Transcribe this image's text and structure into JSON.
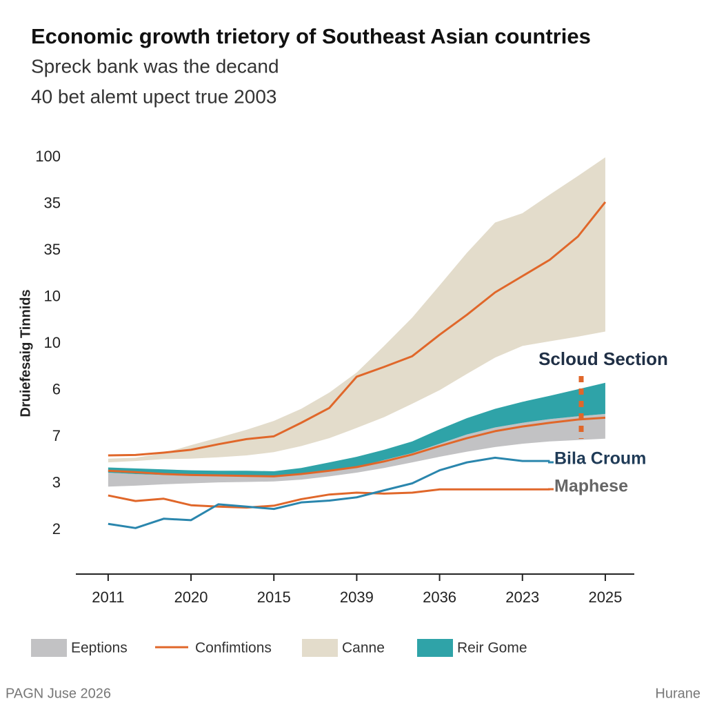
{
  "chart_data": {
    "type": "line",
    "title": "Economic growth trietory of Southeast Asian countries",
    "subtitle": [
      "Spreck bank was the decand",
      "40 bet alemt upect true 2003"
    ],
    "y_label": "Druiefesaig Tinnids",
    "x": [
      0,
      0.33,
      0.67,
      1,
      1.33,
      1.67,
      2,
      2.33,
      2.67,
      3,
      3.33,
      3.67,
      4,
      4.33,
      4.67,
      5,
      5.33,
      5.67,
      6
    ],
    "xlim": [
      -0.39,
      6.35
    ],
    "xticks": [
      {
        "value": 0,
        "label": "2011"
      },
      {
        "value": 1,
        "label": "2020"
      },
      {
        "value": 2,
        "label": "2015"
      },
      {
        "value": 3,
        "label": "2039"
      },
      {
        "value": 4,
        "label": "2036"
      },
      {
        "value": 5,
        "label": "2023"
      },
      {
        "value": 6,
        "label": "2025"
      }
    ],
    "ylim": [
      0,
      9
    ],
    "yticks": [
      {
        "value": 1,
        "label": "2"
      },
      {
        "value": 2,
        "label": "3"
      },
      {
        "value": 3,
        "label": "7"
      },
      {
        "value": 4,
        "label": "6"
      },
      {
        "value": 5,
        "label": "10"
      },
      {
        "value": 6,
        "label": "10"
      },
      {
        "value": 7,
        "label": "35"
      },
      {
        "value": 8,
        "label": "35"
      },
      {
        "value": 9,
        "label": "100"
      }
    ],
    "bands": [
      {
        "name": "Canne",
        "color": "#e3dccb",
        "upper": [
          2.53,
          2.55,
          2.65,
          2.82,
          2.98,
          3.15,
          3.34,
          3.6,
          3.95,
          4.38,
          4.95,
          5.56,
          6.25,
          6.95,
          7.6,
          7.8,
          8.2,
          8.6,
          9.0
        ],
        "lower": [
          2.45,
          2.48,
          2.52,
          2.53,
          2.56,
          2.6,
          2.67,
          2.8,
          2.97,
          3.19,
          3.42,
          3.71,
          4.0,
          4.35,
          4.7,
          4.95,
          5.05,
          5.15,
          5.26
        ]
      },
      {
        "name": "Eeptions",
        "color": "#c2c2c4",
        "upper": [
          2.23,
          2.2,
          2.18,
          2.17,
          2.16,
          2.15,
          2.15,
          2.2,
          2.28,
          2.35,
          2.5,
          2.65,
          2.85,
          3.05,
          3.2,
          3.3,
          3.38,
          3.44,
          3.49
        ],
        "lower": [
          1.93,
          1.95,
          1.98,
          2.0,
          2.02,
          2.03,
          2.04,
          2.08,
          2.15,
          2.23,
          2.33,
          2.45,
          2.57,
          2.68,
          2.78,
          2.85,
          2.9,
          2.93,
          2.96
        ]
      },
      {
        "name": "Reir Gome",
        "color": "#2fa3a8",
        "upper": [
          2.34,
          2.32,
          2.3,
          2.28,
          2.27,
          2.27,
          2.26,
          2.33,
          2.45,
          2.57,
          2.72,
          2.9,
          3.16,
          3.4,
          3.6,
          3.75,
          3.88,
          4.02,
          4.16
        ],
        "lower": [
          2.23,
          2.2,
          2.18,
          2.17,
          2.16,
          2.15,
          2.15,
          2.2,
          2.28,
          2.35,
          2.5,
          2.65,
          2.85,
          3.05,
          3.2,
          3.3,
          3.38,
          3.44,
          3.49
        ]
      }
    ],
    "series": [
      {
        "name": "Confimtions",
        "color": "#e0672a",
        "values": [
          2.6,
          2.61,
          2.66,
          2.72,
          2.84,
          2.95,
          3.01,
          3.3,
          3.62,
          4.29,
          4.5,
          4.73,
          5.19,
          5.62,
          6.1,
          6.45,
          6.8,
          7.3,
          8.04
        ]
      },
      {
        "color": "#e0672a",
        "values": [
          2.27,
          2.24,
          2.2,
          2.18,
          2.17,
          2.16,
          2.15,
          2.2,
          2.27,
          2.35,
          2.47,
          2.62,
          2.8,
          2.97,
          3.12,
          3.22,
          3.3,
          3.37,
          3.41
        ]
      },
      {
        "color": "#e0672a",
        "values": [
          1.74,
          1.62,
          1.67,
          1.53,
          1.5,
          1.48,
          1.52,
          1.66,
          1.76,
          1.8,
          1.78,
          1.8,
          1.87,
          1.87,
          1.87,
          1.87,
          1.87,
          null,
          null
        ]
      },
      {
        "color": "#2a86ad",
        "values": [
          1.13,
          1.04,
          1.24,
          1.21,
          1.55,
          1.5,
          1.45,
          1.59,
          1.63,
          1.7,
          1.85,
          2.0,
          2.28,
          2.45,
          2.55,
          2.48,
          2.48,
          null,
          null
        ]
      }
    ],
    "annotations": [
      "Scloud Section",
      "Bila Croum",
      "Maphese"
    ],
    "footer": [
      "PAGN Juse 2026",
      "Hurane"
    ]
  }
}
